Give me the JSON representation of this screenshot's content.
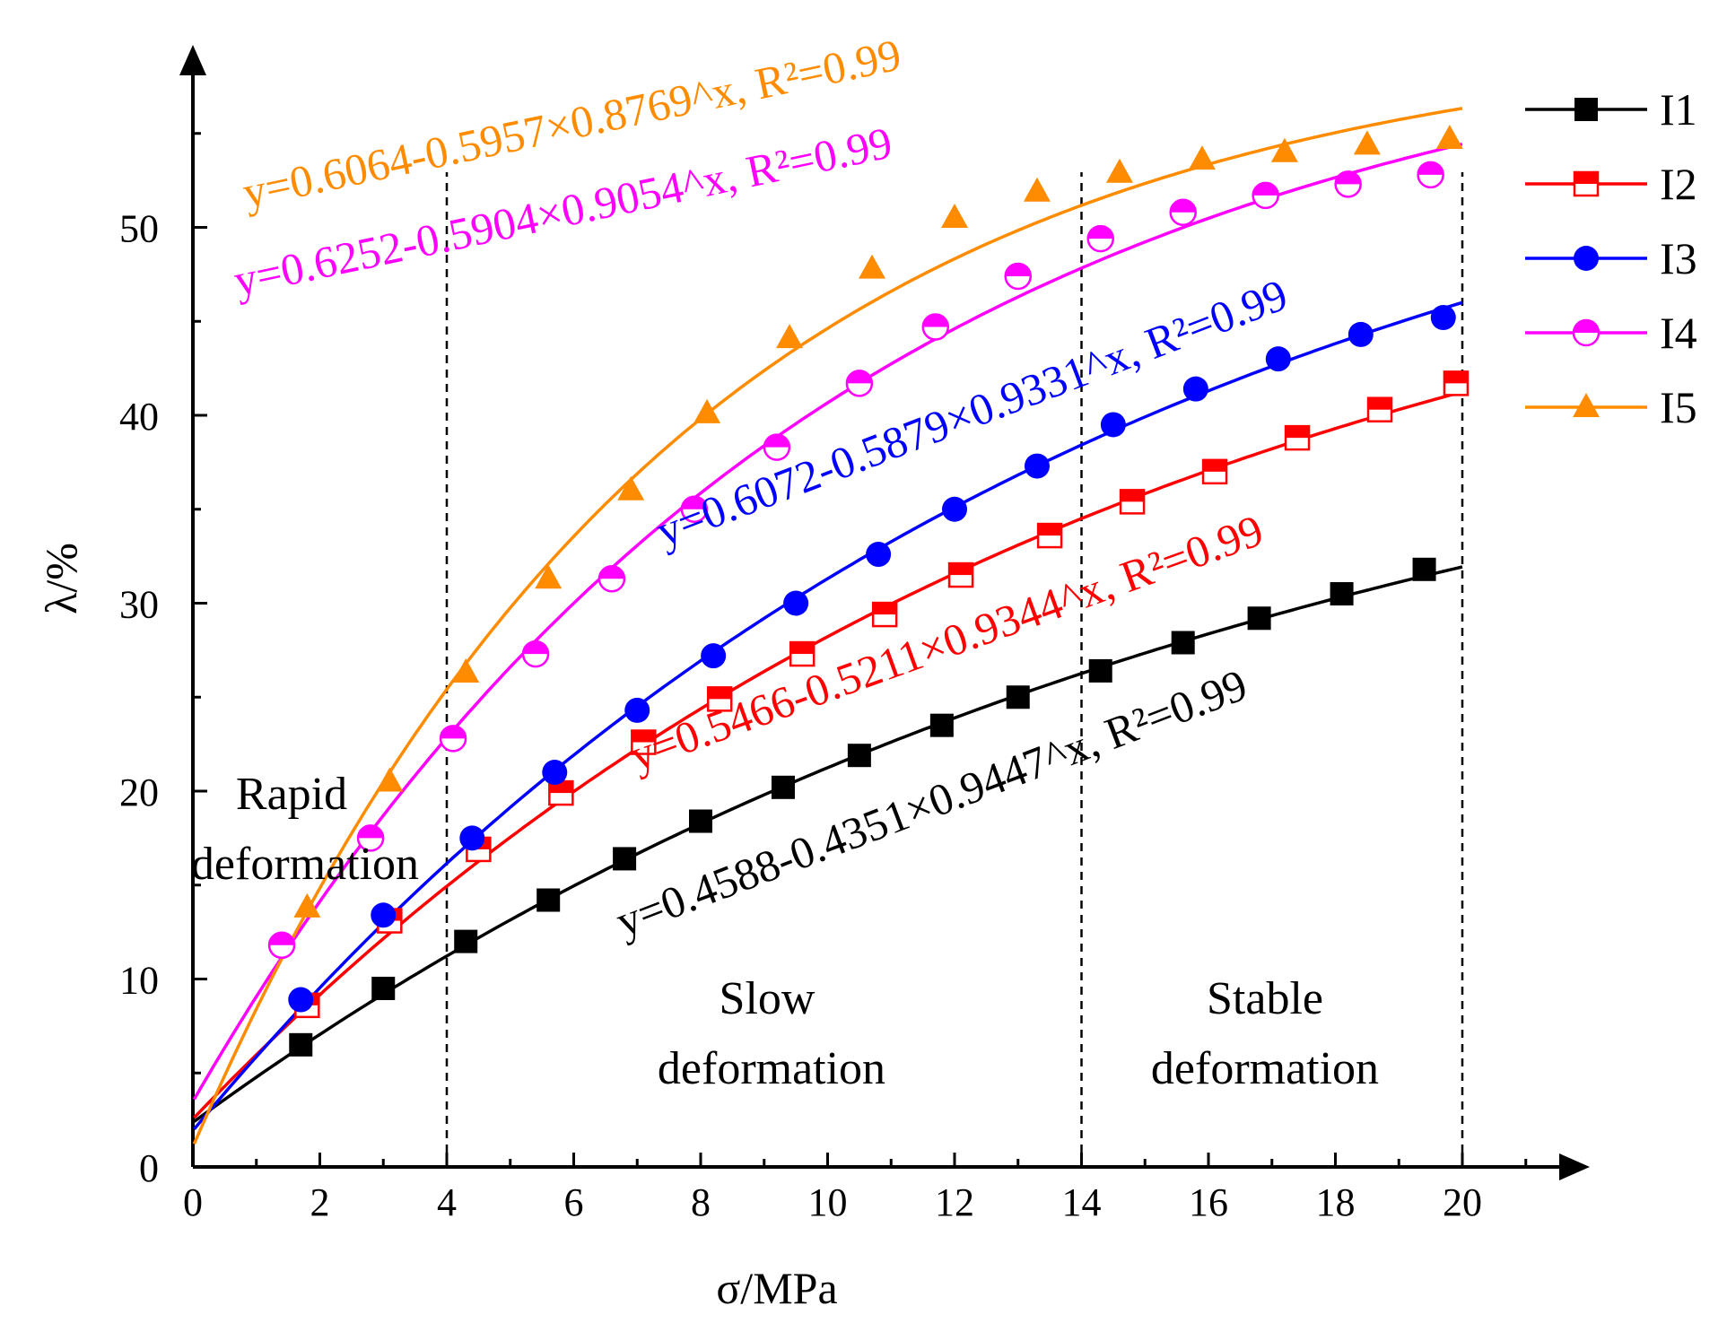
{
  "chart_data": {
    "type": "line",
    "xlabel": "σ/MPa",
    "ylabel": "λ/%",
    "xlim": [
      0,
      22
    ],
    "ylim": [
      0,
      60
    ],
    "xticks": [
      "0",
      "2",
      "4",
      "6",
      "8",
      "10",
      "12",
      "14",
      "16",
      "18",
      "20"
    ],
    "yticks": [
      "0",
      "10",
      "20",
      "30",
      "40",
      "50"
    ],
    "boundaries": [
      4,
      14,
      20
    ],
    "regions": [
      {
        "line1": "Rapid",
        "line2": "deformation"
      },
      {
        "line1": "Slow",
        "line2": "deformation"
      },
      {
        "line1": "Stable",
        "line2": "deformation"
      }
    ],
    "series": [
      {
        "name": "I1",
        "color": "#000000",
        "marker": "square",
        "fit": {
          "a": 0.4588,
          "b": 0.4351,
          "c": 0.9447
        },
        "equation": "y=0.4588-0.4351×0.9447^x, R²=0.99",
        "points": [
          [
            1.7,
            6.5
          ],
          [
            3.0,
            9.5
          ],
          [
            4.3,
            12.0
          ],
          [
            5.6,
            14.2
          ],
          [
            6.8,
            16.4
          ],
          [
            8.0,
            18.4
          ],
          [
            9.3,
            20.2
          ],
          [
            10.5,
            21.9
          ],
          [
            11.8,
            23.5
          ],
          [
            13.0,
            25.0
          ],
          [
            14.3,
            26.4
          ],
          [
            15.6,
            27.9
          ],
          [
            16.8,
            29.2
          ],
          [
            18.1,
            30.5
          ],
          [
            19.4,
            31.8
          ]
        ]
      },
      {
        "name": "I2",
        "color": "#ff0000",
        "marker": "half-square",
        "fit": {
          "a": 0.5466,
          "b": 0.5211,
          "c": 0.9344
        },
        "equation": "y=0.5466-0.5211×0.9344^x, R²=0.99",
        "points": [
          [
            1.8,
            8.6
          ],
          [
            3.1,
            13.1
          ],
          [
            4.5,
            16.9
          ],
          [
            5.8,
            19.9
          ],
          [
            7.1,
            22.6
          ],
          [
            8.3,
            24.9
          ],
          [
            9.6,
            27.3
          ],
          [
            10.9,
            29.4
          ],
          [
            12.1,
            31.5
          ],
          [
            13.5,
            33.6
          ],
          [
            14.8,
            35.4
          ],
          [
            16.1,
            37.0
          ],
          [
            17.4,
            38.8
          ],
          [
            18.7,
            40.3
          ],
          [
            19.9,
            41.7
          ]
        ]
      },
      {
        "name": "I3",
        "color": "#0000ff",
        "marker": "circle",
        "fit": {
          "a": 0.6072,
          "b": 0.5879,
          "c": 0.9331
        },
        "equation": "y=0.6072-0.5879×0.9331^x, R²=0.99",
        "points": [
          [
            1.7,
            8.9
          ],
          [
            3.0,
            13.4
          ],
          [
            4.4,
            17.5
          ],
          [
            5.7,
            21.0
          ],
          [
            7.0,
            24.3
          ],
          [
            8.2,
            27.2
          ],
          [
            9.5,
            30.0
          ],
          [
            10.8,
            32.6
          ],
          [
            12.0,
            35.0
          ],
          [
            13.3,
            37.3
          ],
          [
            14.5,
            39.5
          ],
          [
            15.8,
            41.4
          ],
          [
            17.1,
            43.0
          ],
          [
            18.4,
            44.3
          ],
          [
            19.7,
            45.2
          ]
        ]
      },
      {
        "name": "I4",
        "color": "#ff00ff",
        "marker": "half-circle",
        "fit": {
          "a": 0.6252,
          "b": 0.5904,
          "c": 0.9054
        },
        "equation": "y=0.6252-0.5904×0.9054^x, R²=0.99",
        "points": [
          [
            1.4,
            11.8
          ],
          [
            2.8,
            17.5
          ],
          [
            4.1,
            22.8
          ],
          [
            5.4,
            27.3
          ],
          [
            6.6,
            31.3
          ],
          [
            7.9,
            35.0
          ],
          [
            9.2,
            38.3
          ],
          [
            10.5,
            41.7
          ],
          [
            11.7,
            44.7
          ],
          [
            13.0,
            47.4
          ],
          [
            14.3,
            49.4
          ],
          [
            15.6,
            50.8
          ],
          [
            16.9,
            51.7
          ],
          [
            18.2,
            52.3
          ],
          [
            19.5,
            52.8
          ]
        ]
      },
      {
        "name": "I5",
        "color": "#ff8c00",
        "marker": "triangle",
        "fit": {
          "a": 0.6064,
          "b": 0.5957,
          "c": 0.8769
        },
        "equation": "y=0.6064-0.5957×0.8769^x, R²=0.99",
        "points": [
          [
            1.8,
            13.8
          ],
          [
            3.1,
            20.5
          ],
          [
            4.3,
            26.3
          ],
          [
            5.6,
            31.3
          ],
          [
            6.9,
            36.0
          ],
          [
            8.1,
            40.1
          ],
          [
            9.4,
            44.1
          ],
          [
            10.7,
            47.8
          ],
          [
            12.0,
            50.5
          ],
          [
            13.3,
            51.9
          ],
          [
            14.6,
            52.9
          ],
          [
            15.9,
            53.6
          ],
          [
            17.2,
            54.0
          ],
          [
            18.5,
            54.4
          ],
          [
            19.8,
            54.7
          ]
        ]
      }
    ]
  }
}
